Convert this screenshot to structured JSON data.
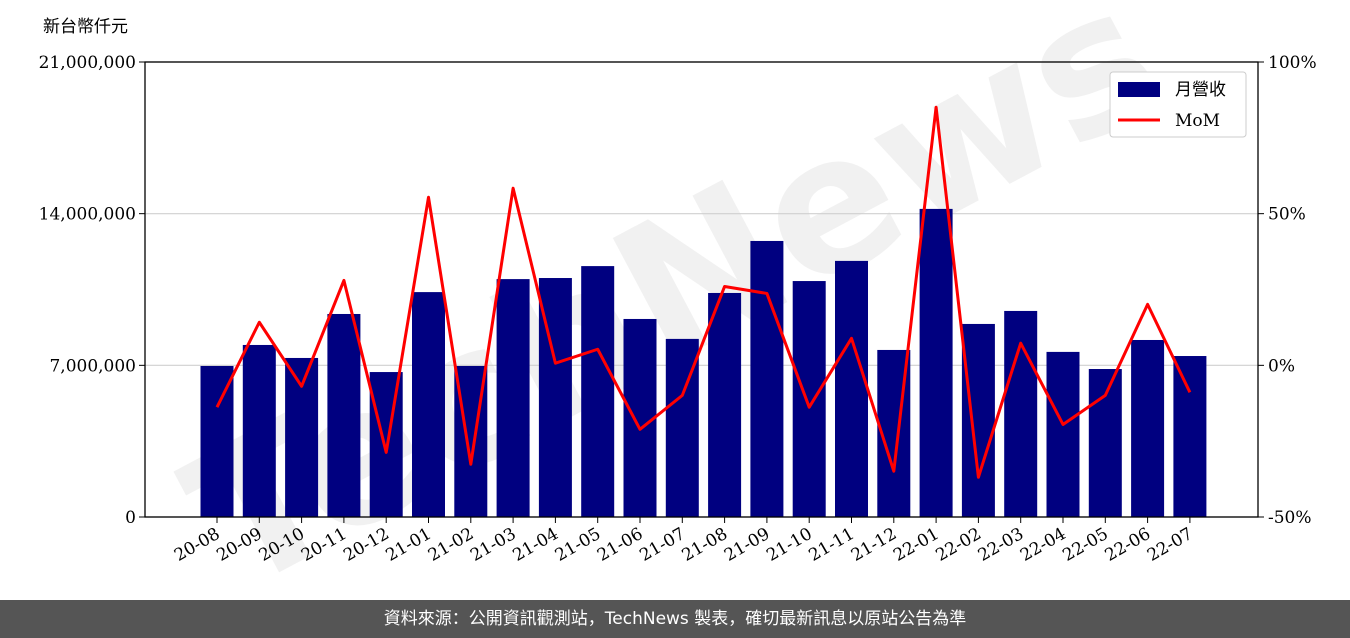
{
  "chart_data": {
    "type": "bar",
    "y_label": "新台幣仟元",
    "watermark": "TechNews",
    "categories": [
      "20-08",
      "20-09",
      "20-10",
      "20-11",
      "20-12",
      "21-01",
      "21-02",
      "21-03",
      "21-04",
      "21-05",
      "21-06",
      "21-07",
      "21-08",
      "21-09",
      "21-10",
      "21-11",
      "21-12",
      "22-01",
      "22-02",
      "22-03",
      "22-04",
      "22-05",
      "22-06",
      "22-07"
    ],
    "series": [
      {
        "name": "月營收",
        "color": "#000080",
        "values": [
          6970000,
          7940000,
          7340000,
          9370000,
          6690000,
          10380000,
          6970000,
          10980000,
          11030000,
          11580000,
          9140000,
          8220000,
          10340000,
          12740000,
          10890000,
          11820000,
          7710000,
          14220000,
          8910000,
          9510000,
          7620000,
          6830000,
          8170000,
          7430000
        ]
      },
      {
        "name": "MoM",
        "color": "#ff0000",
        "type": "line",
        "axis": "y2",
        "values": [
          -13.8,
          14.2,
          -6.9,
          28.0,
          -28.7,
          55.4,
          -32.6,
          58.4,
          0.7,
          5.3,
          -21.1,
          -9.9,
          26.0,
          23.7,
          -13.8,
          8.9,
          -34.9,
          85.1,
          -36.9,
          7.3,
          -19.5,
          -9.9,
          20.1,
          -8.9
        ]
      }
    ],
    "ylim": [
      0,
      21000000
    ],
    "yticks": [
      0,
      {
        "value": 7000000,
        "label": "7,000,000"
      },
      {
        "value": 14000000,
        "label": "14,000,000"
      },
      {
        "value": 21000000,
        "label": "21,000,000"
      }
    ],
    "y2lim": [
      -50,
      100
    ],
    "y2ticks": [
      {
        "value": -50,
        "label": "-50%"
      },
      {
        "value": 0,
        "label": "0%"
      },
      {
        "value": 50,
        "label": "50%"
      },
      {
        "value": 100,
        "label": "100%"
      }
    ],
    "grid": true,
    "legend": "upper right",
    "source": "資料來源：公開資訊觀測站，TechNews 製表，確切最新訊息以原站公告為準"
  }
}
